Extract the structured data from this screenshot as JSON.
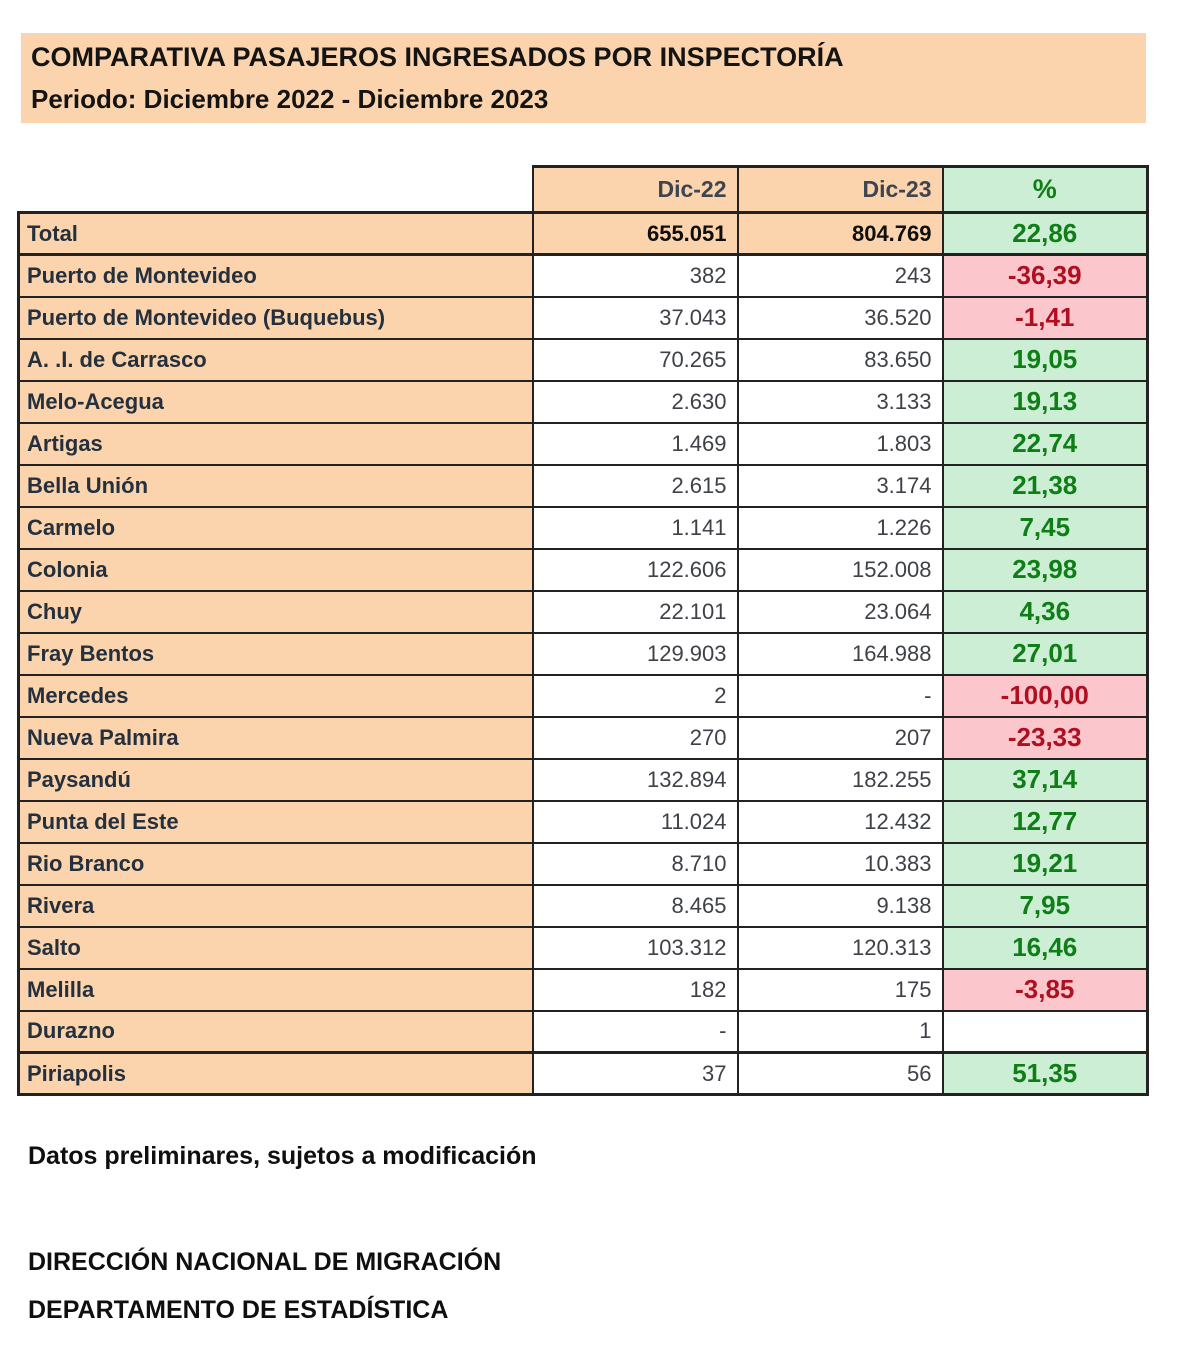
{
  "title": {
    "line1": "COMPARATIVA PASAJEROS INGRESADOS POR INSPECTORÍA",
    "line2": "Periodo: Diciembre 2022  - Diciembre 2023"
  },
  "table": {
    "columns": {
      "dic22": "Dic-22",
      "dic23": "Dic-23",
      "pct": "%"
    },
    "rows": [
      {
        "label": "Total",
        "dic22": "655.051",
        "dic23": "804.769",
        "pct": "22,86",
        "row_type": "total",
        "pct_type": "pos"
      },
      {
        "label": "Puerto de Montevideo",
        "dic22": "382",
        "dic23": "243",
        "pct": "-36,39",
        "row_type": "data",
        "pct_type": "neg"
      },
      {
        "label": "Puerto de Montevideo (Buquebus)",
        "dic22": "37.043",
        "dic23": "36.520",
        "pct": "-1,41",
        "row_type": "data",
        "pct_type": "neg"
      },
      {
        "label": "A. .I. de Carrasco",
        "dic22": "70.265",
        "dic23": "83.650",
        "pct": "19,05",
        "row_type": "data",
        "pct_type": "pos"
      },
      {
        "label": "Melo-Acegua",
        "dic22": "2.630",
        "dic23": "3.133",
        "pct": "19,13",
        "row_type": "data",
        "pct_type": "pos"
      },
      {
        "label": "Artigas",
        "dic22": "1.469",
        "dic23": "1.803",
        "pct": "22,74",
        "row_type": "data",
        "pct_type": "pos"
      },
      {
        "label": "Bella Unión",
        "dic22": "2.615",
        "dic23": "3.174",
        "pct": "21,38",
        "row_type": "data",
        "pct_type": "pos"
      },
      {
        "label": "Carmelo",
        "dic22": "1.141",
        "dic23": "1.226",
        "pct": "7,45",
        "row_type": "data",
        "pct_type": "pos"
      },
      {
        "label": "Colonia",
        "dic22": "122.606",
        "dic23": "152.008",
        "pct": "23,98",
        "row_type": "data",
        "pct_type": "pos"
      },
      {
        "label": "Chuy",
        "dic22": "22.101",
        "dic23": "23.064",
        "pct": "4,36",
        "row_type": "data",
        "pct_type": "pos"
      },
      {
        "label": "Fray Bentos",
        "dic22": "129.903",
        "dic23": "164.988",
        "pct": "27,01",
        "row_type": "data",
        "pct_type": "pos"
      },
      {
        "label": "Mercedes",
        "dic22": "2",
        "dic23": "-",
        "pct": "-100,00",
        "row_type": "data",
        "pct_type": "neg"
      },
      {
        "label": "Nueva Palmira",
        "dic22": "270",
        "dic23": "207",
        "pct": "-23,33",
        "row_type": "data",
        "pct_type": "neg"
      },
      {
        "label": "Paysandú",
        "dic22": "132.894",
        "dic23": "182.255",
        "pct": "37,14",
        "row_type": "data",
        "pct_type": "pos"
      },
      {
        "label": "Punta del Este",
        "dic22": "11.024",
        "dic23": "12.432",
        "pct": "12,77",
        "row_type": "data",
        "pct_type": "pos"
      },
      {
        "label": "Rio Branco",
        "dic22": "8.710",
        "dic23": "10.383",
        "pct": "19,21",
        "row_type": "data",
        "pct_type": "pos"
      },
      {
        "label": "Rivera",
        "dic22": "8.465",
        "dic23": "9.138",
        "pct": "7,95",
        "row_type": "data",
        "pct_type": "pos"
      },
      {
        "label": "Salto",
        "dic22": "103.312",
        "dic23": "120.313",
        "pct": "16,46",
        "row_type": "data",
        "pct_type": "pos"
      },
      {
        "label": "Melilla",
        "dic22": "182",
        "dic23": "175",
        "pct": "-3,85",
        "row_type": "data",
        "pct_type": "neg"
      },
      {
        "label": "Durazno",
        "dic22": "-",
        "dic23": "1",
        "pct": "",
        "row_type": "data",
        "pct_type": "none"
      },
      {
        "label": "Piriapolis",
        "dic22": "37",
        "dic23": "56",
        "pct": "51,35",
        "row_type": "last",
        "pct_type": "pos"
      }
    ]
  },
  "footer": {
    "note": "Datos preliminares, sujetos a modificación",
    "org1": "DIRECCIÓN NACIONAL DE MIGRACIÓN",
    "org2": "DEPARTAMENTO DE ESTADÍSTICA"
  },
  "colors": {
    "header_orange": "#FBD4AD",
    "positive_bg": "#CBEED5",
    "positive_text": "#0F7E16",
    "negative_bg": "#FBC7CD",
    "negative_text": "#B00F20",
    "border": "#222222"
  }
}
